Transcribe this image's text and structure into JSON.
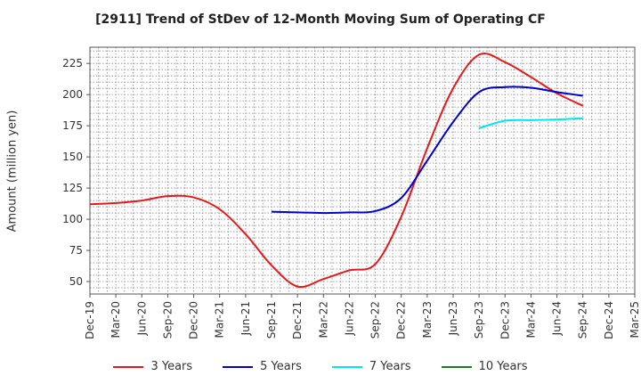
{
  "chart_data": {
    "type": "line",
    "title": "[2911]  Trend of StDev of 12-Month Moving Sum of Operating CF",
    "xlabel": "",
    "ylabel": "Amount (million yen)",
    "x": [
      "Dec-19",
      "Mar-20",
      "Jun-20",
      "Sep-20",
      "Dec-20",
      "Mar-21",
      "Jun-21",
      "Sep-21",
      "Dec-21",
      "Mar-22",
      "Jun-22",
      "Sep-22",
      "Dec-22",
      "Mar-23",
      "Jun-23",
      "Sep-23",
      "Dec-23",
      "Mar-24",
      "Jun-24",
      "Sep-24",
      "Dec-24",
      "Mar-25"
    ],
    "ylim": [
      40,
      238
    ],
    "yticks": [
      50,
      75,
      100,
      125,
      150,
      175,
      200,
      225
    ],
    "grid": true,
    "legend_position": "bottom",
    "series": [
      {
        "name": "3 Years",
        "color": "#e31a1c",
        "values": [
          112,
          113,
          115,
          118.5,
          117.5,
          108,
          88,
          63,
          46,
          52,
          59,
          64,
          102,
          157,
          205,
          232,
          226,
          214,
          201,
          191,
          null,
          null
        ]
      },
      {
        "name": "5 Years",
        "color": "#0000cc",
        "values": [
          null,
          null,
          null,
          null,
          null,
          null,
          null,
          106,
          105.5,
          105,
          105.5,
          106.5,
          117,
          147,
          178,
          202,
          206,
          205.5,
          202,
          199,
          null,
          null
        ]
      },
      {
        "name": "7 Years",
        "color": "#00e5ee",
        "values": [
          null,
          null,
          null,
          null,
          null,
          null,
          null,
          null,
          null,
          null,
          null,
          null,
          null,
          null,
          null,
          173,
          179,
          179.5,
          180,
          181,
          null,
          null
        ]
      },
      {
        "name": "10 Years",
        "color": "#1a7f1a",
        "values": [
          null,
          null,
          null,
          null,
          null,
          null,
          null,
          null,
          null,
          null,
          null,
          null,
          null,
          null,
          null,
          null,
          null,
          null,
          null,
          null,
          null,
          null
        ]
      }
    ]
  }
}
